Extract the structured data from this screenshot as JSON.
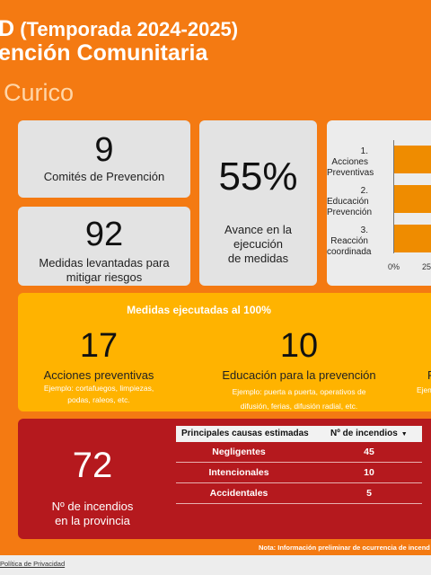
{
  "header": {
    "title_big": "D",
    "title_season": "(Temporada 2024-2025)",
    "title_line2": "ención Comunitaria",
    "subtitle": "Curico"
  },
  "kpis": {
    "comites": {
      "value": "9",
      "label": "Comités de Prevención"
    },
    "medidas": {
      "value": "92",
      "label_line1": "Medidas levantadas para",
      "label_line2": "mitigar riesgos"
    },
    "avance": {
      "value": "55%",
      "label_line1": "Avance en la",
      "label_line2": "ejecución",
      "label_line3": "de medidas"
    }
  },
  "chart_data": {
    "type": "bar",
    "orientation": "horizontal",
    "categories": [
      "1. Acciones Preventivas",
      "2. Educación Prevención",
      "3. Reacción coordinada"
    ],
    "category_lines": [
      [
        "1. Acciones",
        "Preventivas"
      ],
      [
        "2. Educación",
        "Prevención"
      ],
      [
        "3. Reacción",
        "coordinada"
      ]
    ],
    "values": [
      null,
      null,
      null
    ],
    "tick_labels": [
      "0%",
      "25"
    ],
    "bar_color": "#ef8c00"
  },
  "ejecutadas": {
    "heading": "Medidas ejecutadas al 100%",
    "items": [
      {
        "value": "17",
        "label": "Acciones preventivas",
        "example_line1": "Ejemplo: cortafuegos, limpiezas,",
        "example_line2": "podas, raleos, etc."
      },
      {
        "value": "10",
        "label": "Educación para la prevención",
        "example_line1": "Ejemplo: puerta a puerta, operativos de",
        "example_line2": "difusión, ferias, difusión radial, etc."
      },
      {
        "label_partial": "R",
        "example_partial": "Ejem"
      }
    ]
  },
  "incendios": {
    "value": "72",
    "label_line1": "Nº de incendios",
    "label_line2": "en la provincia",
    "table": {
      "col1": "Principales causas estimadas",
      "col2": "Nº de incendios",
      "rows": [
        {
          "cause": "Negligentes",
          "count": "45"
        },
        {
          "cause": "Intencionales",
          "count": "10"
        },
        {
          "cause": "Accidentales",
          "count": "5"
        }
      ]
    }
  },
  "note": "Nota: Información preliminar de ocurrencia de incend",
  "footer": {
    "privacy": "Política de Privacidad"
  },
  "colors": {
    "background": "#f47a12",
    "yellow_panel": "#ffb300",
    "red_panel": "#b5191e",
    "card": "#e3e3e3"
  }
}
